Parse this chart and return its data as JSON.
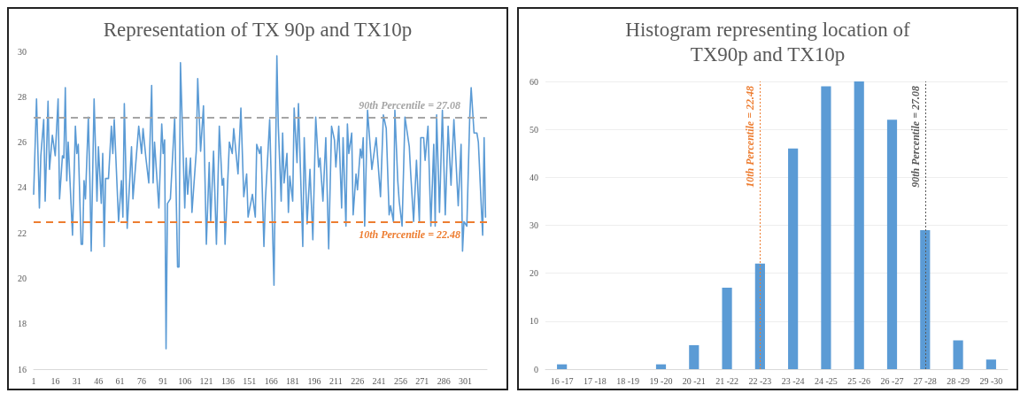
{
  "chart_data": [
    {
      "type": "line",
      "title": "Representation of TX 90p and TX10p",
      "grid": false,
      "marker": "none",
      "line_style": "solid",
      "xlim": [
        1,
        316
      ],
      "xticks": [
        1,
        16,
        31,
        46,
        61,
        76,
        91,
        106,
        121,
        136,
        151,
        166,
        181,
        196,
        211,
        226,
        241,
        256,
        271,
        286,
        301
      ],
      "ylim": [
        16,
        30
      ],
      "yticks": [
        16,
        18,
        20,
        22,
        24,
        26,
        28,
        30
      ],
      "series": [
        {
          "color": "#5b9bd5",
          "x": [
            1,
            3,
            5,
            6,
            8,
            9,
            11,
            12,
            14,
            16,
            18,
            19,
            21,
            22,
            23,
            24,
            25,
            28,
            30,
            31,
            32,
            34,
            35,
            36,
            37,
            39,
            40,
            41,
            43,
            45,
            46,
            48,
            49,
            50,
            51,
            53,
            55,
            56,
            57,
            60,
            62,
            63,
            64,
            66,
            69,
            70,
            72,
            74,
            76,
            77,
            79,
            81,
            83,
            84,
            85,
            88,
            90,
            91,
            92,
            93,
            94,
            96,
            99,
            101,
            102,
            103,
            106,
            107,
            108,
            110,
            111,
            114,
            115,
            117,
            119,
            121,
            123,
            124,
            126,
            128,
            130,
            132,
            133,
            134,
            137,
            139,
            140,
            143,
            145,
            147,
            149,
            150,
            153,
            155,
            156,
            158,
            159,
            161,
            162,
            165,
            168,
            170,
            171,
            173,
            174,
            175,
            177,
            178,
            179,
            181,
            182,
            184,
            185,
            188,
            189,
            191,
            193,
            195,
            197,
            199,
            200,
            202,
            204,
            206,
            208,
            210,
            211,
            213,
            215,
            216,
            218,
            219,
            220,
            222,
            223,
            225,
            226,
            228,
            229,
            230,
            231,
            233,
            236,
            239,
            242,
            244,
            246,
            248,
            249,
            251,
            252,
            254,
            255,
            257,
            259,
            262,
            263,
            265,
            267,
            269,
            270,
            272,
            273,
            275,
            277,
            279,
            280,
            281,
            283,
            285,
            287,
            289,
            291,
            293,
            296,
            298,
            299,
            300,
            302,
            304,
            305,
            307,
            309,
            310,
            312,
            313,
            314,
            315
          ],
          "values": [
            23.7,
            27.9,
            23.1,
            25.4,
            27.0,
            23.4,
            27.8,
            24.8,
            26.3,
            25.4,
            27.9,
            23.5,
            25.4,
            25.3,
            28.4,
            24.3,
            26.0,
            21.9,
            26.7,
            25.5,
            25.9,
            21.5,
            21.5,
            24.3,
            23.5,
            27.1,
            24.5,
            21.2,
            27.9,
            23.4,
            25.8,
            23.3,
            25.5,
            21.4,
            24.4,
            24.4,
            26.7,
            25.5,
            27.0,
            22.5,
            24.3,
            22.7,
            27.7,
            22.2,
            25.8,
            23.5,
            25.1,
            26.7,
            25.5,
            26.6,
            25.3,
            24.2,
            28.5,
            24.2,
            26.0,
            23.1,
            26.8,
            25.5,
            26.1,
            16.9,
            23.3,
            23.5,
            27.1,
            20.5,
            20.5,
            29.5,
            23.1,
            25.3,
            23.7,
            25.3,
            22.9,
            25.6,
            28.8,
            25.6,
            27.6,
            21.5,
            25.1,
            22.5,
            25.6,
            21.5,
            26.7,
            24.1,
            24.4,
            21.5,
            26.0,
            25.5,
            26.6,
            24.6,
            27.5,
            23.6,
            24.6,
            22.7,
            23.7,
            22.7,
            25.9,
            25.5,
            25.8,
            21.4,
            23.4,
            27.0,
            19.7,
            29.8,
            26.7,
            23.4,
            26.4,
            24.2,
            25.5,
            22.9,
            24.5,
            23.4,
            27.5,
            25.1,
            27.7,
            21.4,
            26.2,
            22.4,
            24.8,
            21.7,
            27.1,
            24.9,
            25.3,
            23.4,
            26.2,
            21.3,
            26.7,
            26.1,
            24.9,
            26.7,
            23.1,
            26.2,
            22.3,
            26.8,
            25.5,
            26.4,
            22.8,
            24.6,
            23.9,
            25.7,
            25.3,
            26.2,
            22.3,
            27.4,
            24.8,
            26.2,
            23.6,
            27.2,
            26.6,
            22.8,
            23.2,
            22.5,
            27.4,
            24.3,
            23.4,
            22.3,
            27.1,
            25.8,
            24.6,
            22.5,
            25.2,
            22.5,
            26.2,
            26.2,
            25.2,
            26.7,
            22.3,
            25.9,
            22.3,
            27.2,
            22.9,
            27.4,
            22.8,
            26.7,
            24.1,
            27.0,
            23.2,
            25.9,
            21.2,
            22.5,
            22.3,
            27.1,
            28.4,
            26.4,
            26.4,
            26.0,
            23.2,
            21.9,
            26.2,
            22.7
          ]
        }
      ],
      "ref_lines": [
        {
          "axis": "y",
          "value": 27.08,
          "label": "90th Percentile = 27.08",
          "color": "#a5a5a5",
          "line_style": "dashed"
        },
        {
          "axis": "y",
          "value": 22.48,
          "label": "10th Percentile = 22.48",
          "color": "#ed7d31",
          "line_style": "dashed"
        }
      ]
    },
    {
      "type": "bar",
      "title": "Histogram representing location of\nTX90p and TX10p",
      "grid": "y",
      "categories": [
        "16 -17",
        "17 -18",
        "18 -19",
        "19 -20",
        "20 -21",
        "21 -22",
        "22 -23",
        "23 -24",
        "24 -25",
        "25 -26",
        "26 -27",
        "27 -28",
        "28 -29",
        "29 -30"
      ],
      "ylim": [
        0,
        60
      ],
      "yticks": [
        0,
        10,
        20,
        30,
        40,
        50,
        60
      ],
      "series": [
        {
          "color": "#5b9bd5",
          "values": [
            1,
            0,
            0,
            1,
            5,
            17,
            22,
            46,
            59,
            60,
            52,
            29,
            6,
            2
          ]
        }
      ],
      "ref_lines": [
        {
          "axis": "x",
          "value": "22 -23",
          "label": "10th Percentile = 22.48",
          "color": "#ed7d31",
          "line_style": "dotted"
        },
        {
          "axis": "x",
          "value": "27 -28",
          "label": "90th Percentile = 27.08",
          "color": "#595959",
          "line_style": "dotted"
        }
      ]
    }
  ]
}
